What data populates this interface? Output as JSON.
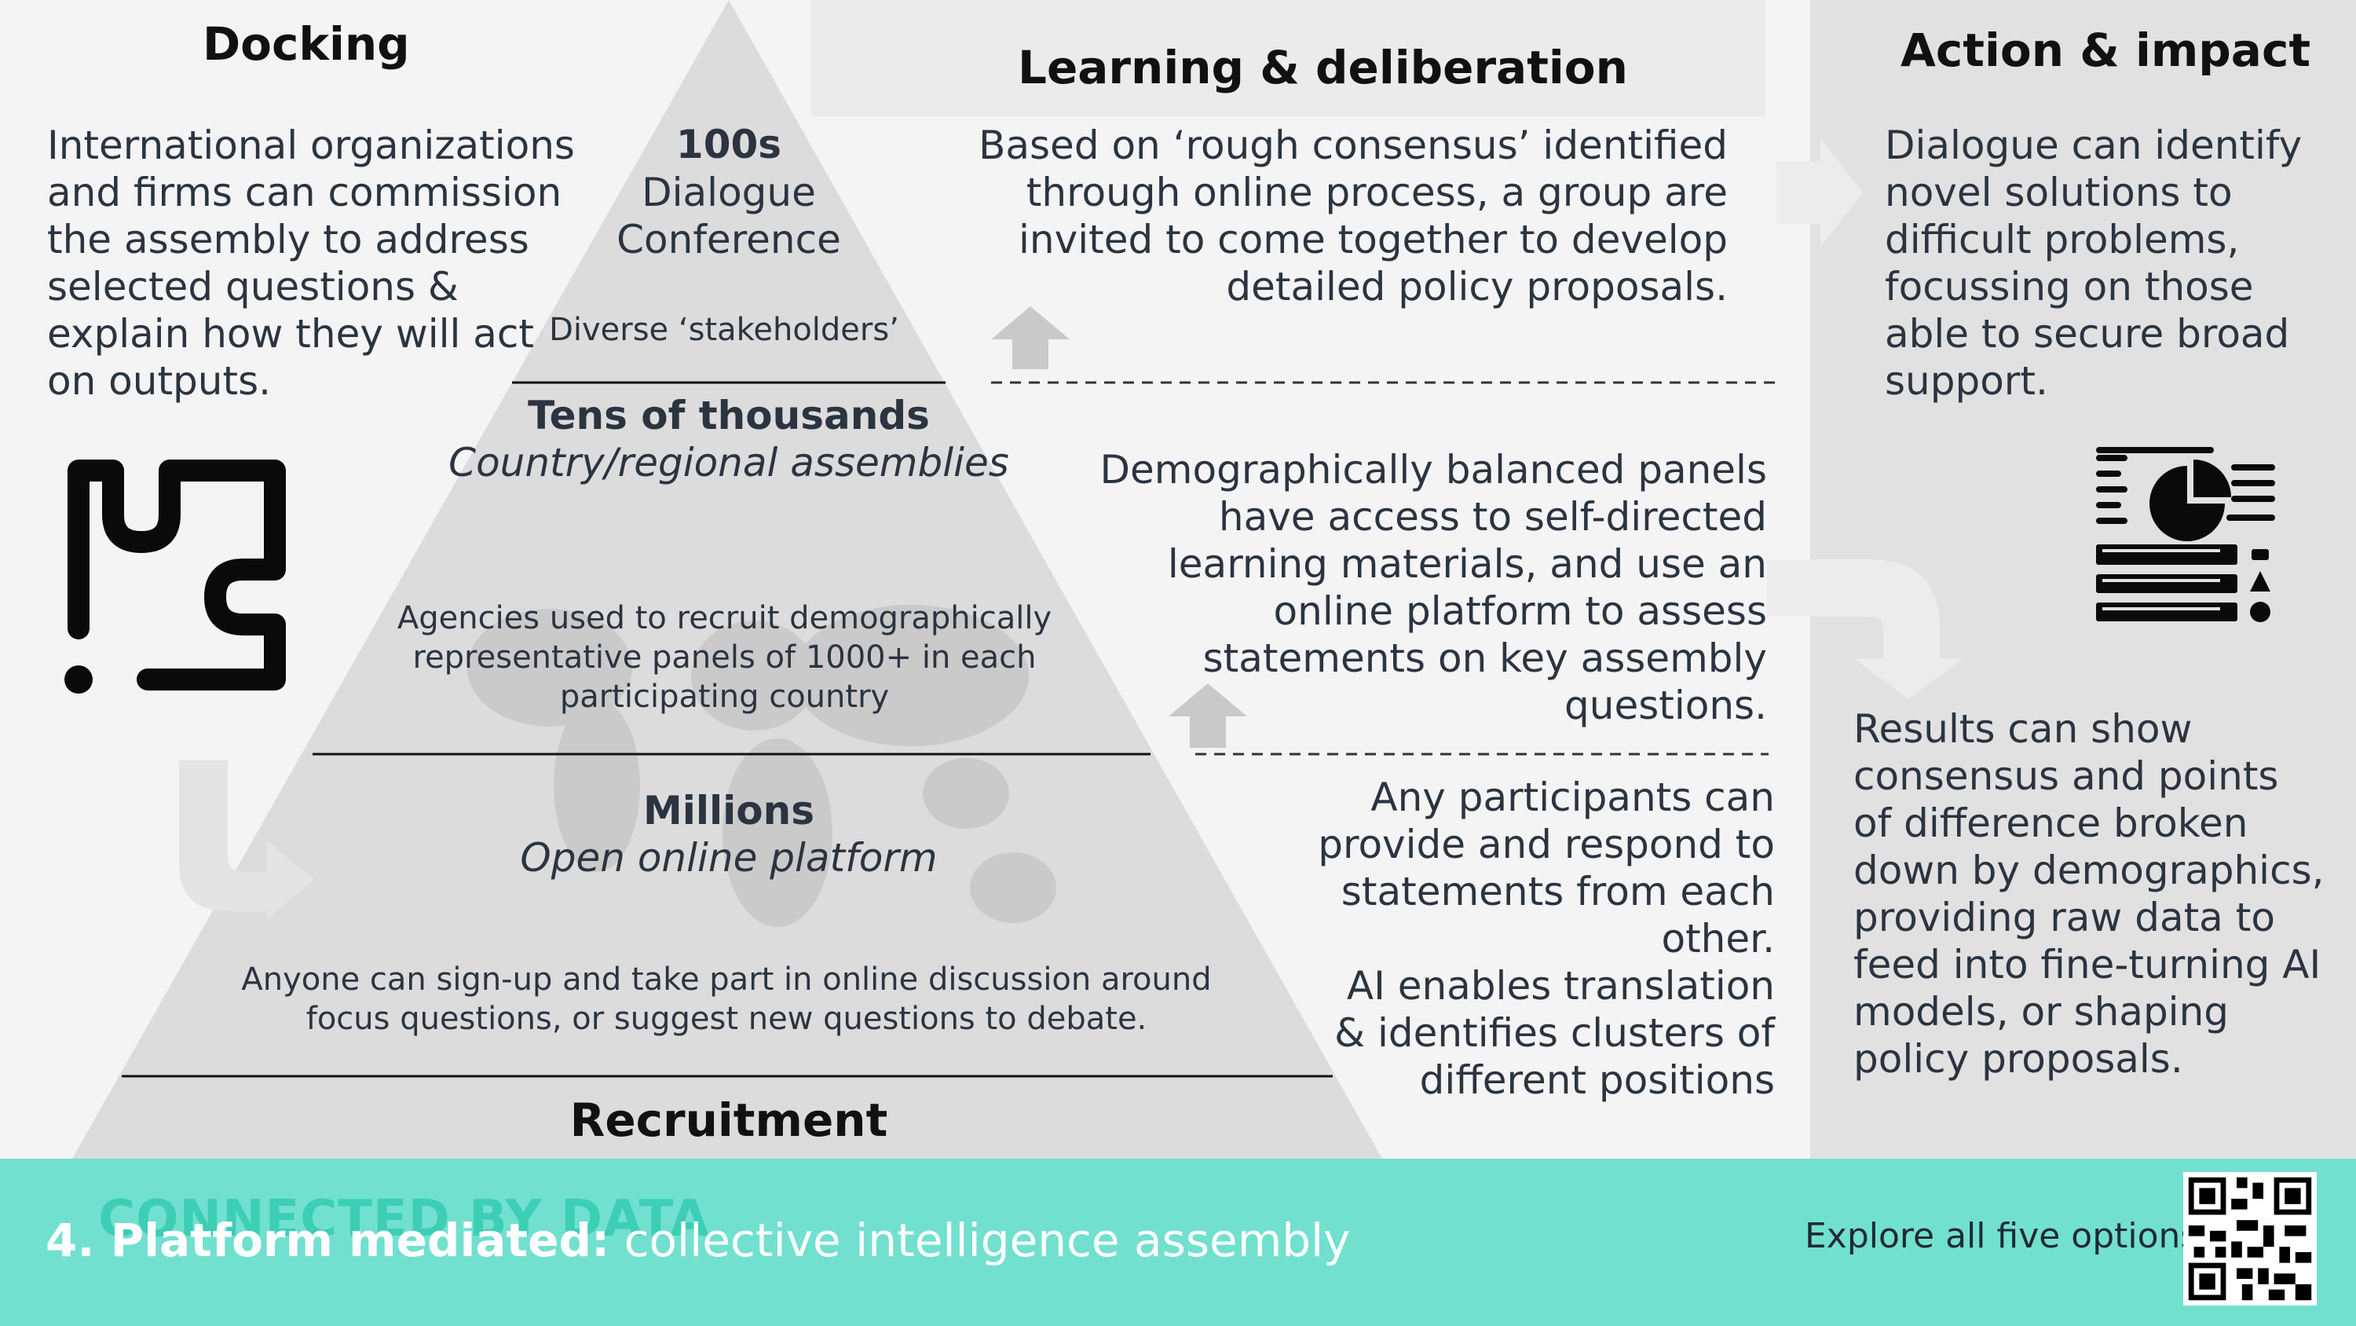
{
  "headings": {
    "docking": "Docking",
    "learning": "Learning & deliberation",
    "action": "Action & impact",
    "recruitment": "Recruitment"
  },
  "docking_text": "International organizations and firms can commission the assembly to address selected questions & explain how they will act on outputs.",
  "action_text": "Dialogue can identify novel solutions to difficult problems, focussing on those able to secure broad support.",
  "results_text": "Results can show consensus and points of difference broken down by demographics, providing raw data to feed into fine-turning AI models, or shaping policy proposals.",
  "pyramid": {
    "top": {
      "title": "100s",
      "line1": "Dialogue",
      "line2": "Conference",
      "note": "Diverse ‘stakeholders’"
    },
    "middle": {
      "title": "Tens of thousands",
      "subtitle": "Country/regional assemblies",
      "note": "Agencies used to recruit demographically representative panels of 1000+ in each participating country"
    },
    "bottom": {
      "title": "Millions",
      "subtitle": "Open online platform",
      "note": "Anyone can sign-up and take part in online discussion around focus questions, or suggest new questions to debate."
    }
  },
  "learning": {
    "text1": "Based on ‘rough consensus’ identified through online process, a group are invited to come together to develop detailed policy proposals.",
    "text2": "Demographically balanced panels have access to self-directed learning materials, and use an online platform to assess statements on key assembly questions.",
    "text3": "Any participants can provide and respond to statements from each other.",
    "text4": "AI enables translation & identifies clusters of different positions"
  },
  "footer": {
    "brand": "CONNECTED BY DATA",
    "title_bold": "4. Platform mediated:",
    "title_rest": "collective intelligence assembly",
    "explore": "Explore all five options:"
  },
  "icons": [
    "puzzle-icon",
    "report-chart-icon",
    "up-arrow-icon",
    "right-arrow-icon",
    "curved-arrow-icon",
    "world-map-icon",
    "qr-code-icon"
  ],
  "colors": {
    "footer": "#72e0cf",
    "brand": "#3ccfb6",
    "right_panel": "#e1e1e1",
    "pyramid": "#dcdcdc"
  }
}
